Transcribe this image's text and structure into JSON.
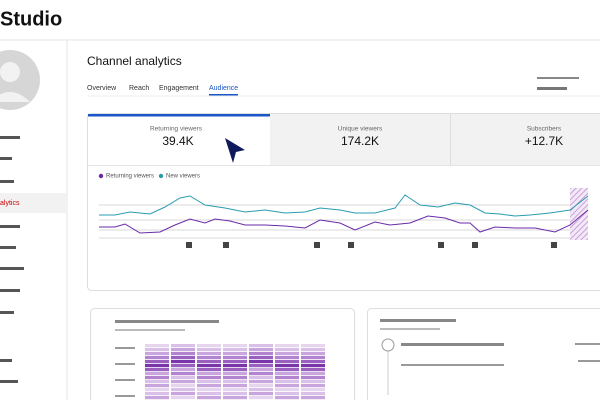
{
  "header": {
    "title": "Studio"
  },
  "sidebar": {
    "active_item": "alytics"
  },
  "main": {
    "title": "Channel analytics",
    "tabs": [
      "Overview",
      "Reach",
      "Engagement",
      "Audience"
    ],
    "cards": [
      {
        "label": "Returning viewers",
        "value": "39.4K"
      },
      {
        "label": "Unique viewers",
        "value": "174.2K"
      },
      {
        "label": "Subscribers",
        "value": "+12.7K"
      }
    ],
    "legend": [
      "Returning viewers",
      "New viewers"
    ]
  }
}
